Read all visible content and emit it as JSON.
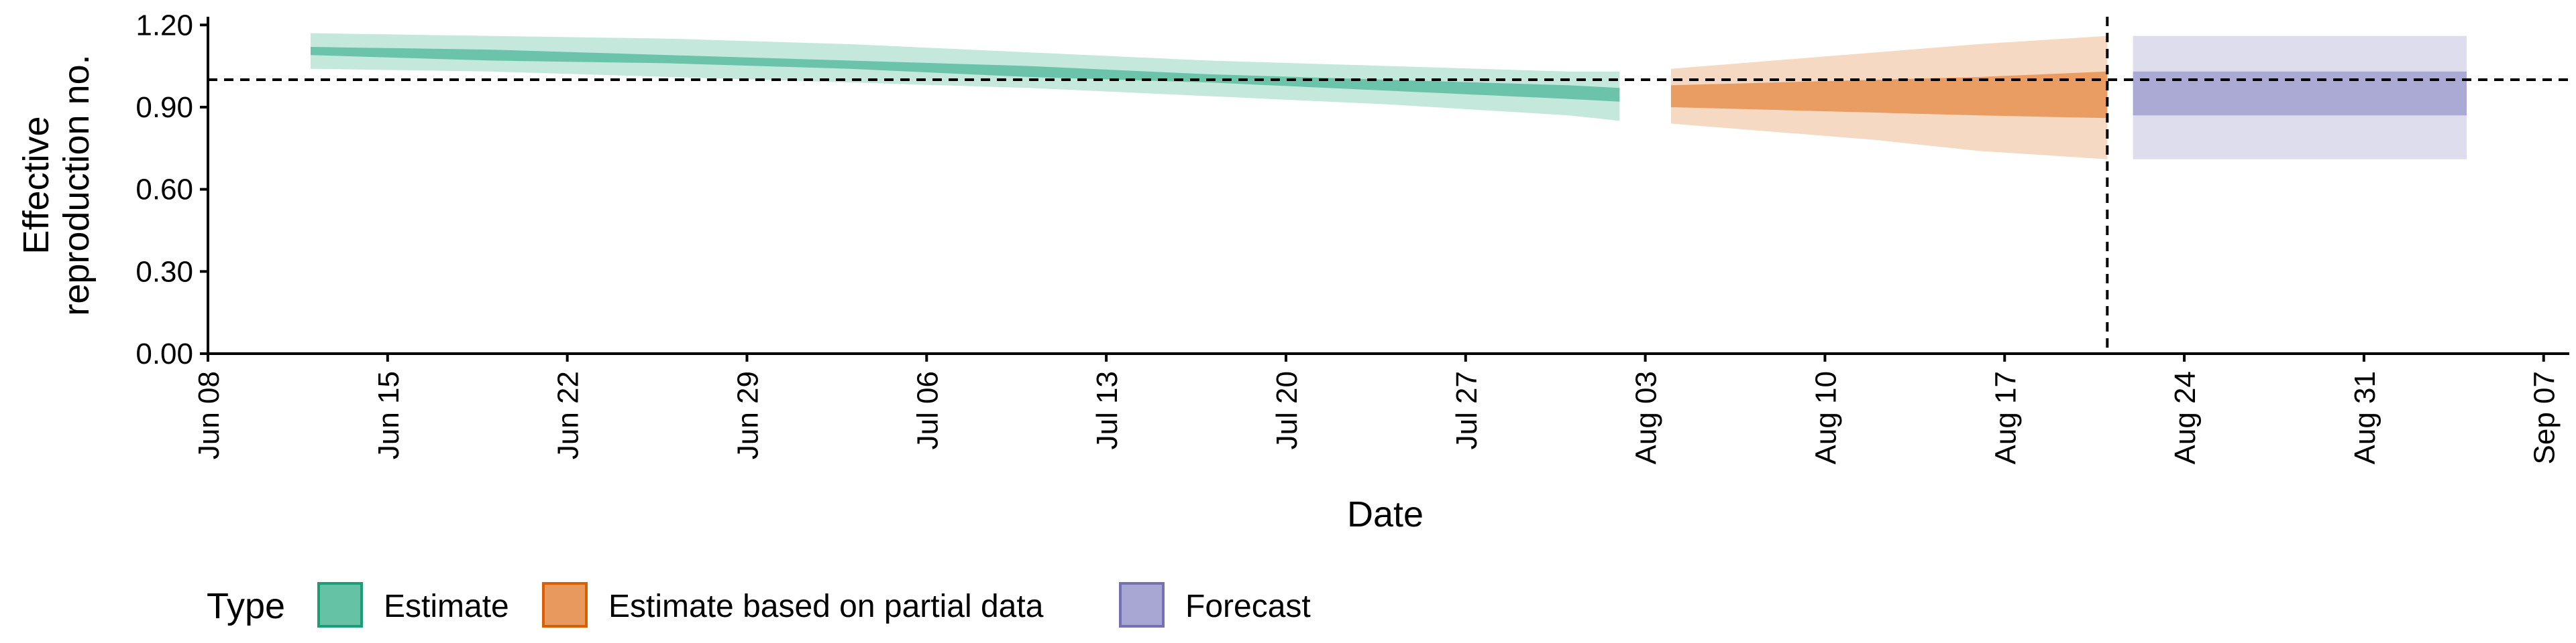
{
  "chart_data": {
    "type": "area",
    "xlabel": "Date",
    "ylabel_lines": [
      "Effective",
      "reproduction no."
    ],
    "x_ticks": [
      {
        "date": "2020-06-08",
        "label": "Jun 08"
      },
      {
        "date": "2020-06-15",
        "label": "Jun 15"
      },
      {
        "date": "2020-06-22",
        "label": "Jun 22"
      },
      {
        "date": "2020-06-29",
        "label": "Jun 29"
      },
      {
        "date": "2020-07-06",
        "label": "Jul 06"
      },
      {
        "date": "2020-07-13",
        "label": "Jul 13"
      },
      {
        "date": "2020-07-20",
        "label": "Jul 20"
      },
      {
        "date": "2020-07-27",
        "label": "Jul 27"
      },
      {
        "date": "2020-08-03",
        "label": "Aug 03"
      },
      {
        "date": "2020-08-10",
        "label": "Aug 10"
      },
      {
        "date": "2020-08-17",
        "label": "Aug 17"
      },
      {
        "date": "2020-08-24",
        "label": "Aug 24"
      },
      {
        "date": "2020-08-31",
        "label": "Aug 31"
      },
      {
        "date": "2020-09-07",
        "label": "Sep 07"
      }
    ],
    "y_ticks": [
      {
        "value": 0.0,
        "label": "0.00"
      },
      {
        "value": 0.3,
        "label": "0.30"
      },
      {
        "value": 0.6,
        "label": "0.60"
      },
      {
        "value": 0.9,
        "label": "0.90"
      },
      {
        "value": 1.2,
        "label": "1.20"
      }
    ],
    "xlim": [
      "2020-06-08",
      "2020-09-08"
    ],
    "ylim": [
      0,
      1.23
    ],
    "reference_line_y": 1.0,
    "forecast_start_date": "2020-08-21",
    "grid": false,
    "legend": {
      "title": "Type",
      "position": "bottom-left",
      "entries": [
        {
          "label": "Estimate",
          "fill": "#66c2a5",
          "stroke": "#1b9e77"
        },
        {
          "label": "Estimate based on partial data",
          "fill": "#e89a5e",
          "stroke": "#d95f02"
        },
        {
          "label": "Forecast",
          "fill": "#a8a6d3",
          "stroke": "#7570b3"
        }
      ]
    },
    "series": [
      {
        "name": "Estimate",
        "fill": "#66c2a5",
        "points": [
          {
            "date": "2020-06-12",
            "lower90": 1.04,
            "lower50": 1.09,
            "upper50": 1.12,
            "upper90": 1.17
          },
          {
            "date": "2020-06-19",
            "lower90": 1.03,
            "lower50": 1.07,
            "upper50": 1.11,
            "upper90": 1.16
          },
          {
            "date": "2020-06-26",
            "lower90": 1.01,
            "lower50": 1.06,
            "upper50": 1.09,
            "upper90": 1.15
          },
          {
            "date": "2020-07-03",
            "lower90": 0.99,
            "lower50": 1.04,
            "upper50": 1.07,
            "upper90": 1.13
          },
          {
            "date": "2020-07-10",
            "lower90": 0.97,
            "lower50": 1.01,
            "upper50": 1.05,
            "upper90": 1.1
          },
          {
            "date": "2020-07-17",
            "lower90": 0.94,
            "lower50": 0.99,
            "upper50": 1.02,
            "upper90": 1.07
          },
          {
            "date": "2020-07-24",
            "lower90": 0.91,
            "lower50": 0.96,
            "upper50": 1.0,
            "upper90": 1.05
          },
          {
            "date": "2020-07-31",
            "lower90": 0.87,
            "lower50": 0.93,
            "upper50": 0.98,
            "upper90": 1.03
          },
          {
            "date": "2020-08-02",
            "lower90": 0.85,
            "lower50": 0.92,
            "upper50": 0.97,
            "upper90": 1.03
          }
        ]
      },
      {
        "name": "Estimate based on partial data",
        "fill": "#e89a5e",
        "points": [
          {
            "date": "2020-08-04",
            "lower90": 0.84,
            "lower50": 0.9,
            "upper50": 0.98,
            "upper90": 1.04
          },
          {
            "date": "2020-08-08",
            "lower90": 0.81,
            "lower50": 0.89,
            "upper50": 0.99,
            "upper90": 1.07
          },
          {
            "date": "2020-08-12",
            "lower90": 0.78,
            "lower50": 0.88,
            "upper50": 1.0,
            "upper90": 1.1
          },
          {
            "date": "2020-08-16",
            "lower90": 0.74,
            "lower50": 0.87,
            "upper50": 1.01,
            "upper90": 1.13
          },
          {
            "date": "2020-08-21",
            "lower90": 0.71,
            "lower50": 0.86,
            "upper50": 1.03,
            "upper90": 1.16
          }
        ]
      },
      {
        "name": "Forecast",
        "fill": "#a8a6d3",
        "points": [
          {
            "date": "2020-08-22",
            "lower90": 0.71,
            "lower50": 0.87,
            "upper50": 1.03,
            "upper90": 1.16
          },
          {
            "date": "2020-09-04",
            "lower90": 0.71,
            "lower50": 0.87,
            "upper50": 1.03,
            "upper90": 1.16
          }
        ]
      }
    ]
  }
}
